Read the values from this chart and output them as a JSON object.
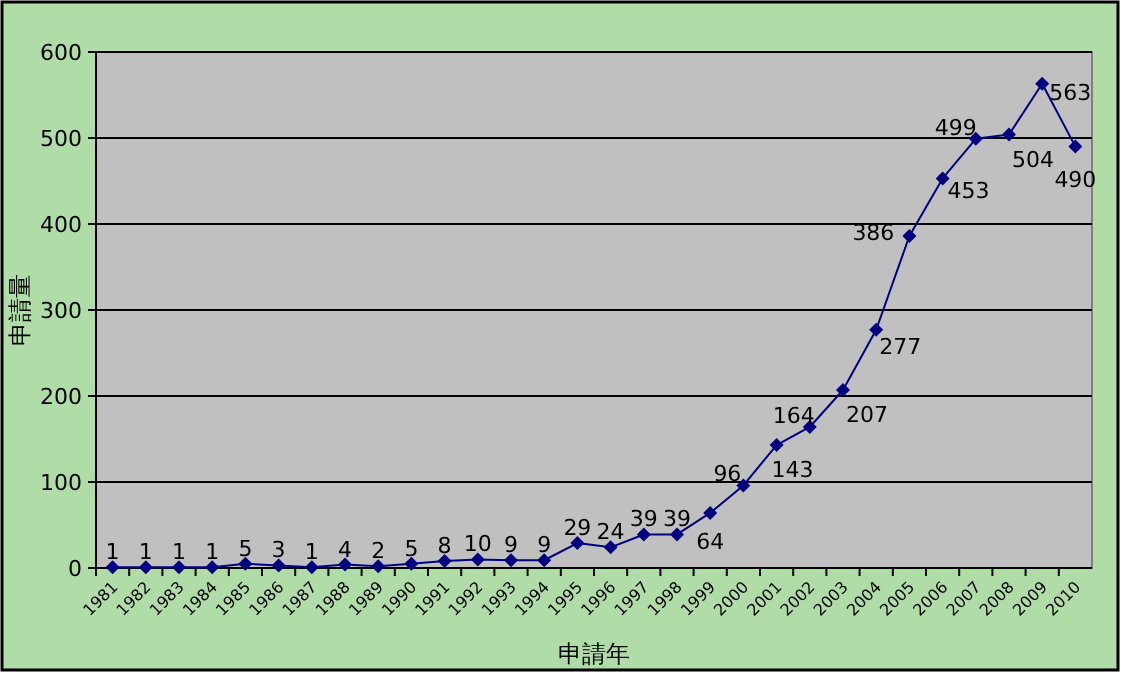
{
  "chart_data": {
    "type": "line",
    "xlabel": "申請年",
    "ylabel": "申請量",
    "categories": [
      "1981",
      "1982",
      "1983",
      "1984",
      "1985",
      "1986",
      "1987",
      "1988",
      "1989",
      "1990",
      "1991",
      "1992",
      "1993",
      "1994",
      "1995",
      "1996",
      "1997",
      "1998",
      "1999",
      "2000",
      "2001",
      "2002",
      "2003",
      "2004",
      "2005",
      "2006",
      "2007",
      "2008",
      "2009",
      "2010"
    ],
    "series": [
      {
        "color": "#000080",
        "values": [
          1,
          1,
          1,
          1,
          5,
          3,
          1,
          4,
          2,
          5,
          8,
          10,
          9,
          9,
          29,
          24,
          39,
          39,
          64,
          96,
          143,
          164,
          207,
          277,
          386,
          453,
          499,
          504,
          563,
          490
        ]
      }
    ],
    "ylim": [
      0,
      600
    ],
    "yticks": [
      0,
      100,
      200,
      300,
      400,
      500,
      600
    ],
    "grid": "y",
    "marker": "diamond",
    "data_labels": true
  }
}
